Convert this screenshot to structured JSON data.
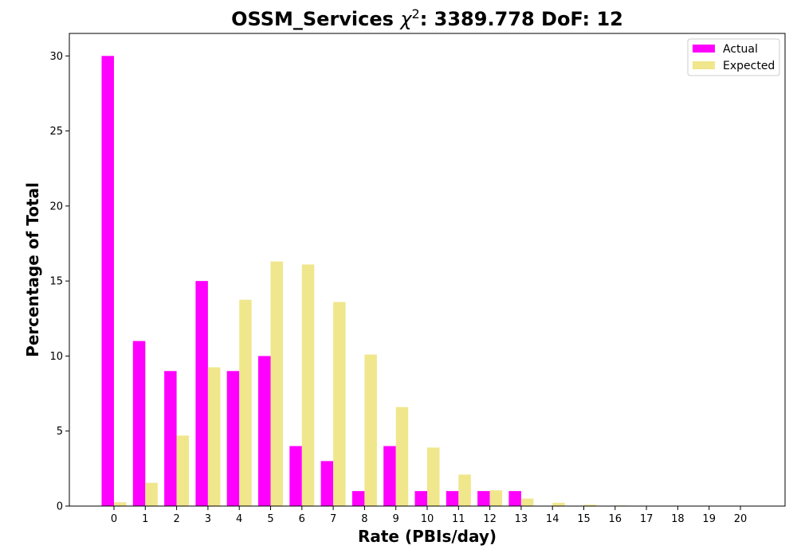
{
  "chart_data": {
    "type": "bar",
    "title": "OSSM_Services χ²: 3389.778 DoF: 12",
    "title_parts": {
      "prefix": "OSSM_Services ",
      "chi": "χ",
      "sup": "2",
      "suffix": ": 3389.778 DoF: 12"
    },
    "xlabel": "Rate (PBIs/day)",
    "ylabel": "Percentage of Total",
    "categories": [
      "0",
      "1",
      "2",
      "3",
      "4",
      "5",
      "6",
      "7",
      "8",
      "9",
      "10",
      "11",
      "12",
      "13",
      "14",
      "15",
      "16",
      "17",
      "18",
      "19",
      "20"
    ],
    "ylim": [
      0,
      31.5
    ],
    "yticks": [
      0,
      5,
      10,
      15,
      20,
      25,
      30
    ],
    "grid": false,
    "legend_position": "top-right",
    "series": [
      {
        "name": "Actual",
        "color": "#ff00ff",
        "values": [
          30,
          11,
          9,
          15,
          9,
          10,
          4,
          3,
          1,
          4,
          1,
          1,
          1,
          1,
          0,
          0,
          0,
          0,
          0,
          0,
          0
        ]
      },
      {
        "name": "Expected",
        "color": "#f0e68c",
        "values": [
          0.25,
          1.55,
          4.7,
          9.25,
          13.75,
          16.3,
          16.1,
          13.6,
          10.1,
          6.6,
          3.9,
          2.1,
          1.05,
          0.5,
          0.22,
          0.09,
          0.04,
          0.01,
          0.0,
          0.0,
          0.0
        ]
      }
    ]
  }
}
